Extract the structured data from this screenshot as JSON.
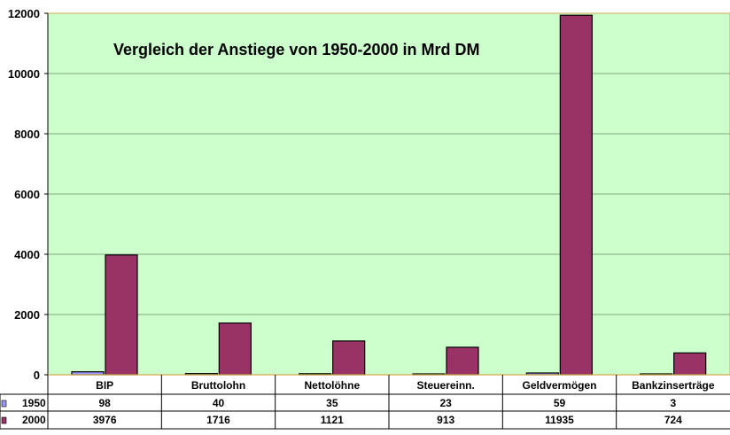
{
  "chart_data": {
    "type": "bar",
    "title": "Vergleich der Anstiege von 1950-2000 in Mrd DM",
    "categories": [
      "BIP",
      "Bruttolohn",
      "Nettolöhne",
      "Steuereinn.",
      "Geldvermögen",
      "Bankzinserträge"
    ],
    "series": [
      {
        "name": "1950",
        "values": [
          98,
          40,
          35,
          23,
          59,
          3
        ],
        "color": "#9999ff"
      },
      {
        "name": "2000",
        "values": [
          3976,
          1716,
          1121,
          913,
          11935,
          724
        ],
        "color": "#993366"
      }
    ],
    "ylim": [
      0,
      12000
    ],
    "yticks": [
      0,
      2000,
      4000,
      6000,
      8000,
      10000,
      12000
    ],
    "grid": true,
    "plot_background": "#ccffcc",
    "legend": "data-table"
  }
}
